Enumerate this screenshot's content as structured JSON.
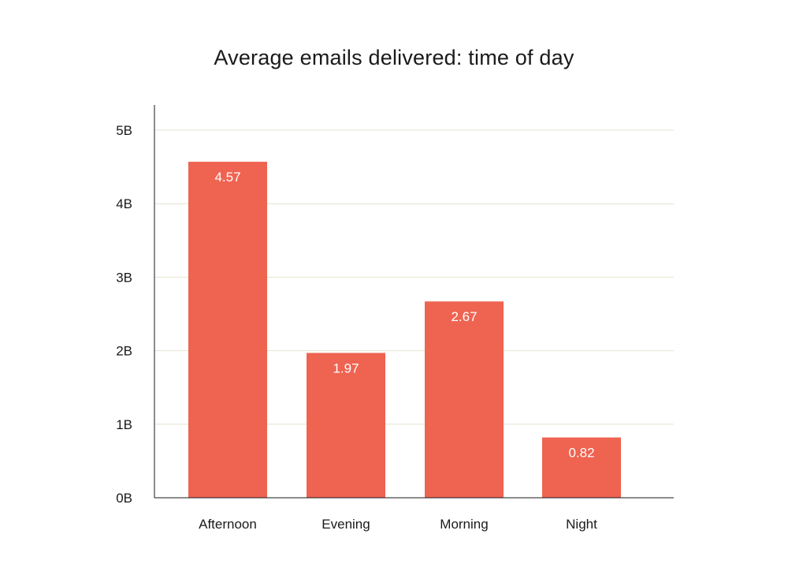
{
  "chart_data": {
    "type": "bar",
    "title": "Average emails delivered: time of day",
    "xlabel": "",
    "ylabel": "",
    "categories": [
      "Afternoon",
      "Evening",
      "Morning",
      "Night"
    ],
    "values": [
      4.57,
      1.97,
      2.67,
      0.82
    ],
    "data_labels": [
      "4.57",
      "1.97",
      "2.67",
      "0.82"
    ],
    "ylim": [
      0,
      5
    ],
    "yticks": [
      0,
      1,
      2,
      3,
      4,
      5
    ],
    "ytick_labels": [
      "0B",
      "1B",
      "2B",
      "3B",
      "4B",
      "5B"
    ],
    "grid": true,
    "legend": "none",
    "colors": {
      "bar": "#ef6351",
      "grid": "#e4e2cf",
      "axis": "#1a1a1a",
      "text": "#1a1a1a",
      "label_on_bar": "#ffffff"
    }
  }
}
